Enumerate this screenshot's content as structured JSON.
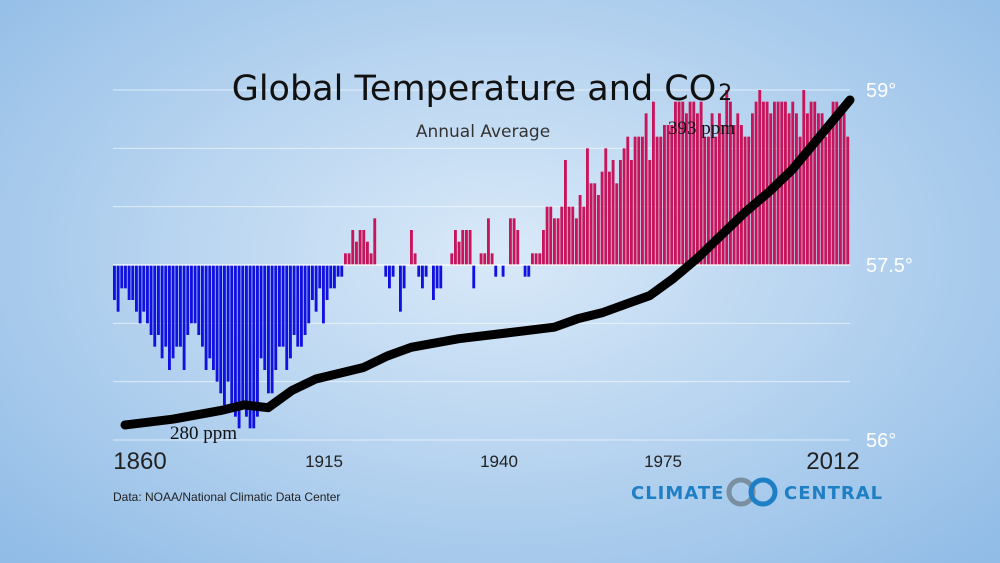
{
  "chart_data": {
    "type": "bar",
    "title": "Global Temperature and CO",
    "title_subscript": "2",
    "subtitle": "Annual Average",
    "xlim": [
      1860,
      2012
    ],
    "ylim": [
      56.0,
      59.0
    ],
    "baseline": 57.5,
    "y_ticks": [
      56.0,
      57.5,
      59.0
    ],
    "y_tick_labels": [
      "56°",
      "57.5°",
      "59°"
    ],
    "x_ticks": [
      1860,
      1915,
      1940,
      1975,
      2012
    ],
    "x_tick_labels": [
      "1860",
      "1915",
      "1940",
      "1975",
      "2012"
    ],
    "colors": {
      "above": "#c8145a",
      "below": "#1010e0",
      "co2_line": "#000000",
      "background": "#b9d5f0"
    },
    "grid": true,
    "series": [
      {
        "type": "bar",
        "start_year": 1860,
        "values": [
          57.2,
          57.1,
          57.3,
          57.3,
          57.2,
          57.2,
          57.1,
          57.0,
          57.1,
          57.0,
          56.9,
          56.8,
          56.9,
          56.7,
          56.8,
          56.6,
          56.7,
          56.8,
          56.8,
          56.6,
          56.9,
          57.0,
          57.0,
          56.9,
          56.8,
          56.6,
          56.7,
          56.6,
          56.5,
          56.4,
          56.3,
          56.5,
          56.3,
          56.2,
          56.1,
          56.3,
          56.2,
          56.1,
          56.1,
          56.2,
          56.7,
          56.6,
          56.4,
          56.4,
          56.6,
          56.8,
          56.8,
          56.6,
          56.7,
          56.9,
          56.8,
          56.8,
          56.9,
          57.0,
          57.2,
          57.1,
          57.3,
          57.0,
          57.2,
          57.3,
          57.3,
          57.4,
          57.4,
          57.6,
          57.6,
          57.8,
          57.7,
          57.8,
          57.8,
          57.7,
          57.6,
          57.9,
          57.5,
          57.5,
          57.4,
          57.3,
          57.4,
          57.5,
          57.1,
          57.3,
          57.5,
          57.8,
          57.6,
          57.4,
          57.3,
          57.4,
          57.5,
          57.2,
          57.3,
          57.3,
          57.5,
          57.5,
          57.6,
          57.8,
          57.7,
          57.8,
          57.8,
          57.8,
          57.3,
          57.5,
          57.6,
          57.6,
          57.9,
          57.6,
          57.4,
          57.5,
          57.4,
          57.5,
          57.9,
          57.9,
          57.8,
          57.5,
          57.4,
          57.4,
          57.6,
          57.6,
          57.6,
          57.8,
          58.0,
          58.0,
          57.9,
          57.9,
          58.0,
          58.4,
          58.0,
          58.0,
          57.9,
          58.1,
          58.0,
          58.5,
          58.2,
          58.2,
          58.1,
          58.3,
          58.5,
          58.3,
          58.4,
          58.2,
          58.4,
          58.5,
          58.6,
          58.4,
          58.6,
          58.6,
          58.6,
          58.8,
          58.4,
          58.9,
          58.6,
          58.6,
          58.7,
          58.7,
          58.7,
          58.9,
          58.9,
          58.9,
          58.8,
          58.9,
          58.9,
          58.8,
          58.9,
          58.6,
          58.6,
          58.8,
          58.6,
          58.8,
          58.7,
          59.0,
          58.9,
          58.7,
          58.8,
          58.7,
          58.6,
          58.6,
          58.8,
          58.9,
          59.0,
          58.9,
          58.9,
          58.8,
          58.9,
          58.9,
          58.9,
          58.9,
          58.8,
          58.9,
          58.8,
          58.6,
          59.0,
          58.8,
          58.9,
          58.9,
          58.8,
          58.8,
          58.6,
          58.7,
          58.9,
          58.9,
          58.8,
          58.8,
          58.6
        ]
      },
      {
        "type": "line",
        "unit": "ppm",
        "x": [
          1860,
          1870,
          1880,
          1885,
          1890,
          1895,
          1900,
          1910,
          1915,
          1920,
          1930,
          1940,
          1950,
          1955,
          1960,
          1965,
          1970,
          1975,
          1980,
          1985,
          1990,
          1995,
          2000,
          2005,
          2012
        ],
        "values": [
          280,
          282,
          285,
          287,
          286,
          292,
          296,
          300,
          304,
          307,
          310,
          312,
          314,
          317,
          319,
          322,
          325,
          331,
          338,
          346,
          354,
          361,
          369,
          379,
          393
        ],
        "annotations": [
          {
            "x": 1860,
            "text": "280 ppm"
          },
          {
            "x": 2012,
            "text": "393 ppm"
          }
        ]
      }
    ]
  },
  "footer": {
    "source": "Data: NOAA/National Climatic Data Center",
    "logo_left": "CLIMATE",
    "logo_right": "CENTRAL"
  }
}
